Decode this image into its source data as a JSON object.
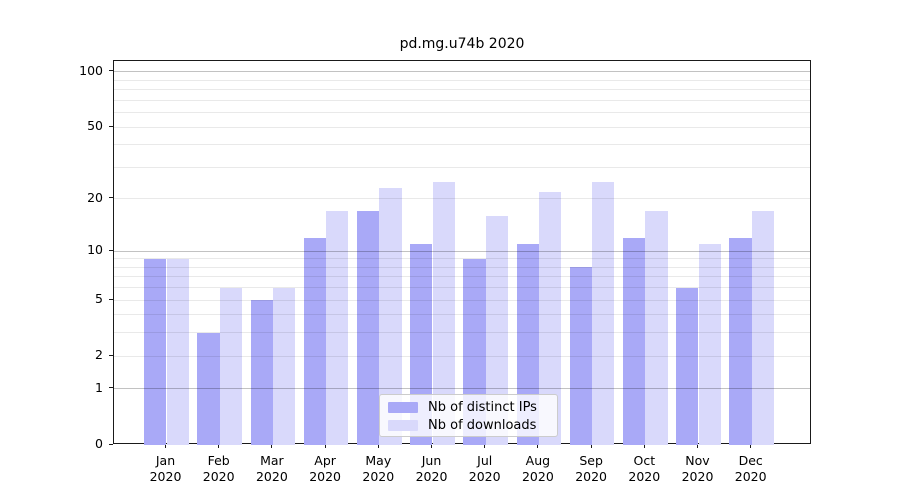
{
  "title": "pd.mg.u74b 2020",
  "chart_data": {
    "type": "bar",
    "title": "pd.mg.u74b 2020",
    "categories": [
      "Jan",
      "Feb",
      "Mar",
      "Apr",
      "May",
      "Jun",
      "Jul",
      "Aug",
      "Sep",
      "Oct",
      "Nov",
      "Dec"
    ],
    "year": "2020",
    "series": [
      {
        "name": "Nb of distinct IPs",
        "color": "#a9a9f7",
        "values": [
          9,
          3,
          5,
          12,
          17,
          11,
          9,
          11,
          8,
          12,
          6,
          12
        ]
      },
      {
        "name": "Nb of downloads",
        "color": "#d9d9fb",
        "values": [
          9,
          6,
          6,
          17,
          23,
          25,
          16,
          22,
          25,
          17,
          11,
          17
        ]
      }
    ],
    "xlabel": "",
    "ylabel": "",
    "yscale": "log1p",
    "ylim": [
      0,
      115
    ],
    "yticks": [
      0,
      1,
      2,
      5,
      10,
      20,
      50,
      100
    ],
    "ygrid_major": [
      1,
      10,
      100
    ],
    "ygrid_minor": [
      2,
      3,
      4,
      5,
      6,
      7,
      8,
      9,
      20,
      30,
      40,
      50,
      60,
      70,
      80,
      90
    ],
    "grid": true,
    "legend_position": "lower center"
  }
}
